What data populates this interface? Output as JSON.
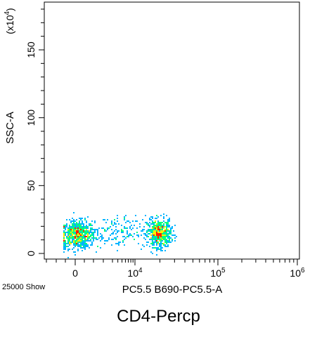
{
  "caption": "CD4-Percp",
  "event_note": "25000 Show",
  "chart_data": {
    "type": "scatter",
    "subtype": "density-dot-plot",
    "title": "",
    "xlabel": "PC5.5 B690-PC5.5-A",
    "ylabel": "SSC-A",
    "y_multiplier": "(x10",
    "y_multiplier_exp": "4",
    "y_multiplier_close": ")",
    "x_scale": "logicle",
    "xlim": [
      -1000,
      1000000
    ],
    "ylim": [
      -3,
      185
    ],
    "x_ticks": [
      {
        "value": 0,
        "label": "0",
        "exp": ""
      },
      {
        "value": 10000,
        "label": "10",
        "exp": "4"
      },
      {
        "value": 100000,
        "label": "10",
        "exp": "5"
      },
      {
        "value": 1000000,
        "label": "10",
        "exp": "6"
      }
    ],
    "y_ticks": [
      {
        "value": 0,
        "label": "0"
      },
      {
        "value": 50,
        "label": "50"
      },
      {
        "value": 100,
        "label": "100"
      },
      {
        "value": 150,
        "label": "150"
      }
    ],
    "grid": false,
    "legend": "none",
    "colormap": [
      "#0000ff",
      "#00b4ff",
      "#00ff80",
      "#ffee00",
      "#ff2000"
    ],
    "populations": [
      {
        "x_center": 150,
        "y_center": 14,
        "x_spread_log": 0.0,
        "x_spread_lin": 700,
        "y_spread": 5,
        "events": 9000
      },
      {
        "x_center": 38000,
        "y_center": 15,
        "x_spread_log": 0.14,
        "x_spread_lin": 0,
        "y_spread": 5,
        "events": 8000
      },
      {
        "x_center": 3500,
        "y_center": 16,
        "x_spread_log": 0.35,
        "x_spread_lin": 0,
        "y_spread": 6,
        "events": 2200
      }
    ]
  }
}
